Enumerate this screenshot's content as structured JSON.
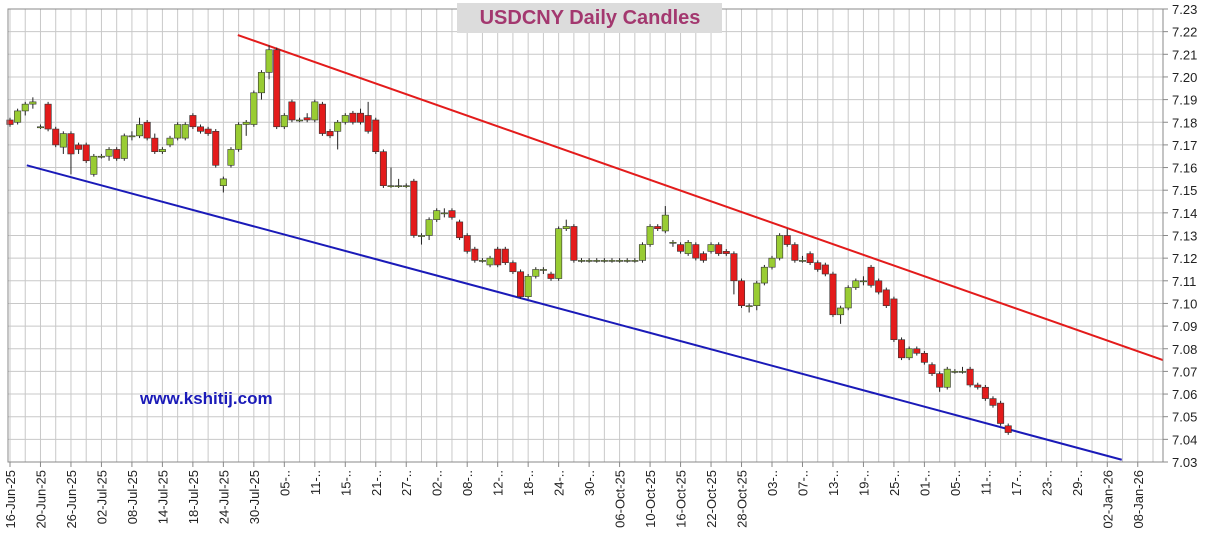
{
  "chart_data": {
    "type": "candlestick",
    "title": "USDCNY Daily Candles",
    "watermark": "www.kshitij.com",
    "x_labels": [
      "16-Jun-25",
      "20-Jun-25",
      "26-Jun-25",
      "02-Jul-25",
      "08-Jul-25",
      "14-Jul-25",
      "18-Jul-25",
      "24-Jul-25",
      "30-Jul-25",
      "05-..",
      "11-..",
      "15-..",
      "21-..",
      "27-..",
      "02-..",
      "08-..",
      "12-..",
      "18-..",
      "24-..",
      "30-..",
      "06-Oct-25",
      "10-Oct-25",
      "16-Oct-25",
      "22-Oct-25",
      "28-Oct-25",
      "03-..",
      "07-..",
      "13-..",
      "19-..",
      "25-..",
      "01-..",
      "05-..",
      "11-..",
      "17-..",
      "23-..",
      "29-..",
      "02-Jan-26",
      "08-Jan-26"
    ],
    "ylim": [
      7.03,
      7.23
    ],
    "yticks": [
      7.03,
      7.04,
      7.05,
      7.06,
      7.07,
      7.08,
      7.09,
      {
        "value": 7.1,
        "label": "7.10"
      },
      7.11,
      7.12,
      7.13,
      7.14,
      7.15,
      7.16,
      7.17,
      7.18,
      7.19,
      {
        "value": 7.2,
        "label": "7.20"
      },
      7.21,
      7.22,
      7.23
    ],
    "grid": true,
    "up_color": "#99cc33",
    "down_color": "#e31b1b",
    "candles": [
      [
        7.181,
        7.182,
        7.178,
        7.179
      ],
      [
        7.18,
        7.186,
        7.179,
        7.185
      ],
      [
        7.185,
        7.189,
        7.183,
        7.188
      ],
      [
        7.188,
        7.191,
        7.186,
        7.189
      ],
      [
        7.178,
        7.179,
        7.177,
        7.178
      ],
      [
        7.188,
        7.189,
        7.176,
        7.177
      ],
      [
        7.177,
        7.178,
        7.169,
        7.17
      ],
      [
        7.169,
        7.176,
        7.166,
        7.175
      ],
      [
        7.175,
        7.176,
        7.157,
        7.166
      ],
      [
        7.17,
        7.171,
        7.166,
        7.168
      ],
      [
        7.17,
        7.171,
        7.162,
        7.163
      ],
      [
        7.157,
        7.166,
        7.156,
        7.165
      ],
      [
        7.165,
        7.166,
        7.164,
        7.165
      ],
      [
        7.165,
        7.169,
        7.163,
        7.168
      ],
      [
        7.168,
        7.169,
        7.163,
        7.164
      ],
      [
        7.164,
        7.175,
        7.163,
        7.174
      ],
      [
        7.174,
        7.176,
        7.172,
        7.174
      ],
      [
        7.174,
        7.182,
        7.173,
        7.179
      ],
      [
        7.18,
        7.181,
        7.172,
        7.173
      ],
      [
        7.173,
        7.175,
        7.166,
        7.167
      ],
      [
        7.167,
        7.169,
        7.166,
        7.168
      ],
      [
        7.17,
        7.174,
        7.169,
        7.173
      ],
      [
        7.173,
        7.18,
        7.172,
        7.179
      ],
      [
        7.173,
        7.18,
        7.172,
        7.179
      ],
      [
        7.183,
        7.184,
        7.177,
        7.178
      ],
      [
        7.178,
        7.179,
        7.175,
        7.176
      ],
      [
        7.177,
        7.178,
        7.174,
        7.175
      ],
      [
        7.176,
        7.177,
        7.16,
        7.161
      ],
      [
        7.152,
        7.156,
        7.149,
        7.155
      ],
      [
        7.161,
        7.169,
        7.16,
        7.168
      ],
      [
        7.168,
        7.18,
        7.167,
        7.179
      ],
      [
        7.179,
        7.181,
        7.174,
        7.18
      ],
      [
        7.179,
        7.194,
        7.178,
        7.193
      ],
      [
        7.193,
        7.203,
        7.19,
        7.202
      ],
      [
        7.202,
        7.214,
        7.199,
        7.212
      ],
      [
        7.212,
        7.213,
        7.177,
        7.178
      ],
      [
        7.178,
        7.184,
        7.177,
        7.183
      ],
      [
        7.189,
        7.19,
        7.18,
        7.181
      ],
      [
        7.181,
        7.182,
        7.18,
        7.181
      ],
      [
        7.182,
        7.184,
        7.18,
        7.181
      ],
      [
        7.181,
        7.19,
        7.18,
        7.189
      ],
      [
        7.188,
        7.189,
        7.174,
        7.175
      ],
      [
        7.176,
        7.177,
        7.173,
        7.174
      ],
      [
        7.176,
        7.181,
        7.168,
        7.18
      ],
      [
        7.18,
        7.184,
        7.179,
        7.183
      ],
      [
        7.184,
        7.185,
        7.179,
        7.18
      ],
      [
        7.184,
        7.186,
        7.179,
        7.18
      ],
      [
        7.183,
        7.189,
        7.175,
        7.176
      ],
      [
        7.181,
        7.182,
        7.166,
        7.167
      ],
      [
        7.167,
        7.168,
        7.151,
        7.152
      ],
      [
        7.152,
        7.16,
        7.151,
        7.152
      ],
      [
        7.152,
        7.155,
        7.151,
        7.152
      ],
      [
        7.152,
        7.153,
        7.151,
        7.152
      ],
      [
        7.154,
        7.155,
        7.129,
        7.13
      ],
      [
        7.13,
        7.131,
        7.126,
        7.13
      ],
      [
        7.13,
        7.138,
        7.128,
        7.137
      ],
      [
        7.137,
        7.142,
        7.136,
        7.141
      ],
      [
        7.14,
        7.142,
        7.138,
        7.14
      ],
      [
        7.141,
        7.142,
        7.137,
        7.138
      ],
      [
        7.136,
        7.137,
        7.128,
        7.129
      ],
      [
        7.13,
        7.131,
        7.122,
        7.123
      ],
      [
        7.124,
        7.125,
        7.118,
        7.119
      ],
      [
        7.119,
        7.12,
        7.118,
        7.119
      ],
      [
        7.117,
        7.121,
        7.116,
        7.12
      ],
      [
        7.124,
        7.125,
        7.116,
        7.117
      ],
      [
        7.124,
        7.125,
        7.117,
        7.118
      ],
      [
        7.118,
        7.119,
        7.113,
        7.114
      ],
      [
        7.114,
        7.115,
        7.102,
        7.103
      ],
      [
        7.103,
        7.113,
        7.102,
        7.112
      ],
      [
        7.112,
        7.116,
        7.111,
        7.115
      ],
      [
        7.115,
        7.116,
        7.113,
        7.115
      ],
      [
        7.113,
        7.114,
        7.11,
        7.111
      ],
      [
        7.111,
        7.134,
        7.11,
        7.133
      ],
      [
        7.133,
        7.137,
        7.132,
        7.134
      ],
      [
        7.134,
        7.135,
        7.118,
        7.119
      ],
      [
        7.119,
        7.12,
        7.118,
        7.119
      ],
      [
        7.119,
        7.12,
        7.118,
        7.119
      ],
      [
        7.119,
        7.12,
        7.118,
        7.119
      ],
      [
        7.119,
        7.12,
        7.118,
        7.119
      ],
      [
        7.119,
        7.12,
        7.118,
        7.119
      ],
      [
        7.119,
        7.12,
        7.118,
        7.119
      ],
      [
        7.119,
        7.12,
        7.118,
        7.119
      ],
      [
        7.119,
        7.12,
        7.118,
        7.119
      ],
      [
        7.119,
        7.127,
        7.118,
        7.126
      ],
      [
        7.126,
        7.135,
        7.125,
        7.134
      ],
      [
        7.134,
        7.135,
        7.132,
        7.133
      ],
      [
        7.132,
        7.143,
        7.131,
        7.139
      ],
      [
        7.127,
        7.128,
        7.125,
        7.127
      ],
      [
        7.126,
        7.127,
        7.122,
        7.123
      ],
      [
        7.122,
        7.128,
        7.121,
        7.127
      ],
      [
        7.126,
        7.127,
        7.119,
        7.12
      ],
      [
        7.122,
        7.123,
        7.118,
        7.119
      ],
      [
        7.123,
        7.127,
        7.122,
        7.126
      ],
      [
        7.126,
        7.127,
        7.121,
        7.122
      ],
      [
        7.123,
        7.124,
        7.121,
        7.122
      ],
      [
        7.122,
        7.123,
        7.104,
        7.11
      ],
      [
        7.11,
        7.111,
        7.098,
        7.099
      ],
      [
        7.099,
        7.1,
        7.096,
        7.099
      ],
      [
        7.099,
        7.11,
        7.097,
        7.109
      ],
      [
        7.109,
        7.117,
        7.108,
        7.116
      ],
      [
        7.116,
        7.121,
        7.115,
        7.12
      ],
      [
        7.12,
        7.131,
        7.119,
        7.13
      ],
      [
        7.13,
        7.133,
        7.125,
        7.126
      ],
      [
        7.126,
        7.127,
        7.118,
        7.119
      ],
      [
        7.119,
        7.121,
        7.118,
        7.119
      ],
      [
        7.122,
        7.123,
        7.117,
        7.118
      ],
      [
        7.118,
        7.119,
        7.114,
        7.115
      ],
      [
        7.117,
        7.118,
        7.112,
        7.113
      ],
      [
        7.113,
        7.114,
        7.094,
        7.095
      ],
      [
        7.095,
        7.099,
        7.091,
        7.098
      ],
      [
        7.098,
        7.108,
        7.097,
        7.107
      ],
      [
        7.107,
        7.111,
        7.106,
        7.11
      ],
      [
        7.11,
        7.112,
        7.108,
        7.11
      ],
      [
        7.116,
        7.117,
        7.107,
        7.108
      ],
      [
        7.11,
        7.111,
        7.104,
        7.105
      ],
      [
        7.106,
        7.107,
        7.098,
        7.099
      ],
      [
        7.102,
        7.103,
        7.083,
        7.084
      ],
      [
        7.084,
        7.085,
        7.075,
        7.076
      ],
      [
        7.076,
        7.081,
        7.075,
        7.08
      ],
      [
        7.08,
        7.081,
        7.077,
        7.078
      ],
      [
        7.078,
        7.079,
        7.073,
        7.074
      ],
      [
        7.073,
        7.074,
        7.068,
        7.069
      ],
      [
        7.069,
        7.07,
        7.061,
        7.063
      ],
      [
        7.063,
        7.072,
        7.062,
        7.071
      ],
      [
        7.07,
        7.071,
        7.069,
        7.07
      ],
      [
        7.07,
        7.072,
        7.069,
        7.07
      ],
      [
        7.071,
        7.072,
        7.063,
        7.064
      ],
      [
        7.064,
        7.065,
        7.062,
        7.063
      ],
      [
        7.063,
        7.064,
        7.057,
        7.058
      ],
      [
        7.058,
        7.059,
        7.054,
        7.055
      ],
      [
        7.056,
        7.057,
        7.046,
        7.047
      ],
      [
        7.046,
        7.047,
        7.042,
        7.043
      ]
    ],
    "trend_lines": [
      {
        "color": "#e31b1b",
        "x": [
          29.9,
          151.3
        ],
        "y": [
          7.2185,
          7.075
        ]
      },
      {
        "color": "#1a1ab8",
        "x": [
          2.2,
          145.9
        ],
        "y": [
          7.161,
          7.031
        ]
      }
    ]
  }
}
